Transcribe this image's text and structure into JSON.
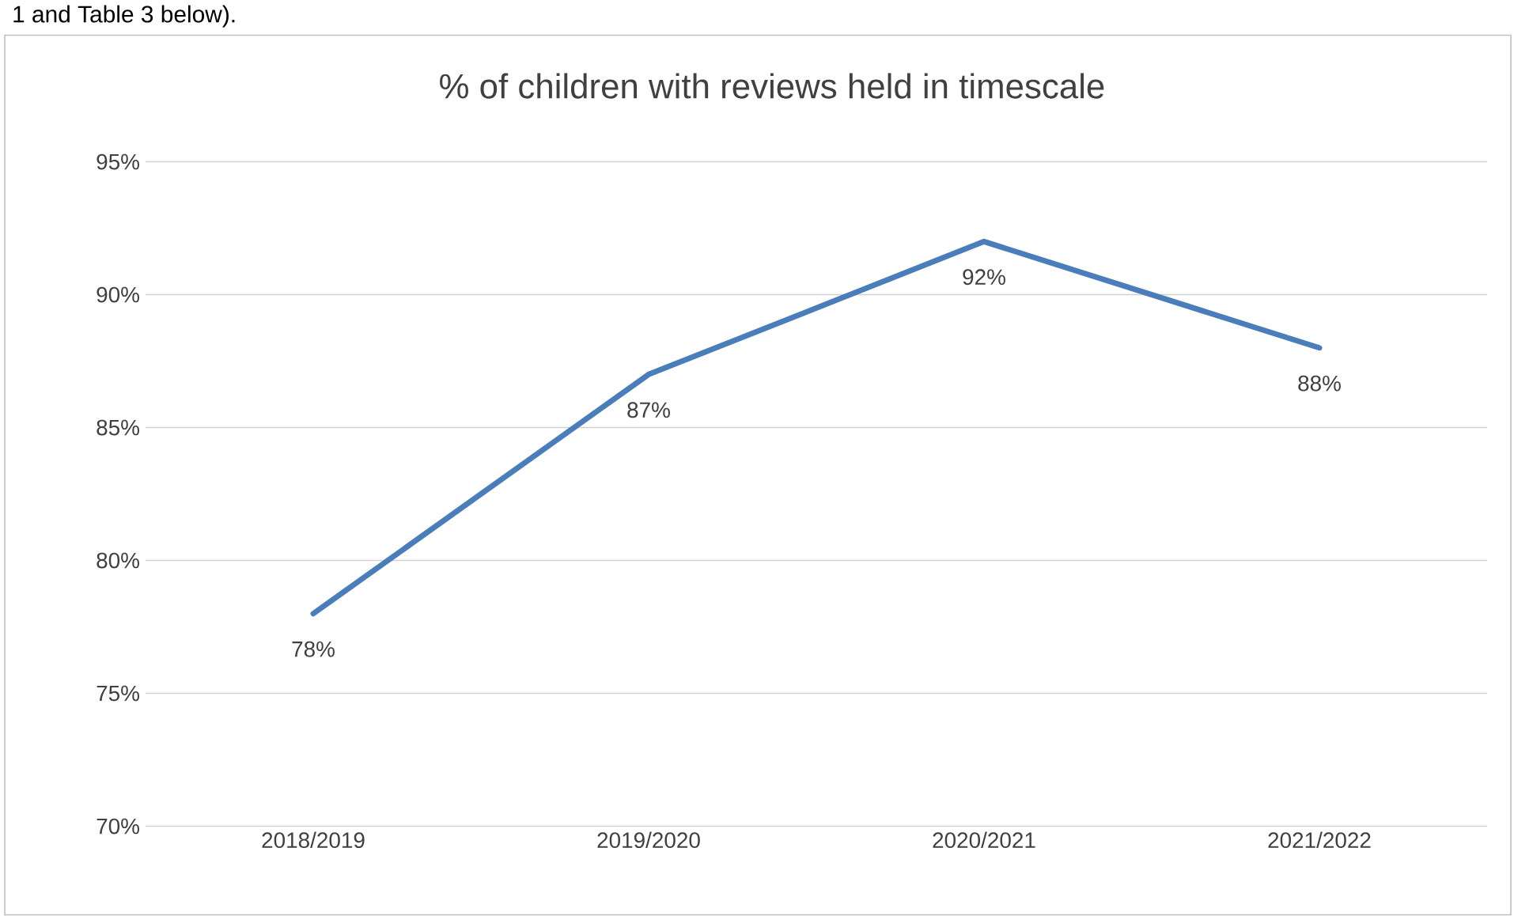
{
  "chart_data": {
    "type": "line",
    "title": "% of children with reviews held in timescale",
    "annotations": [
      "1 and Table 3 below)."
    ],
    "categories": [
      "2018/2019",
      "2019/2020",
      "2020/2021",
      "2021/2022"
    ],
    "series": [
      {
        "color": "#4a7ebb",
        "values": [
          78,
          87,
          92,
          88
        ],
        "value_labels": [
          "78%",
          "87%",
          "92%",
          "88%"
        ]
      }
    ],
    "ylim": [
      70,
      95
    ],
    "yticks": [
      {
        "value": 70,
        "label": "70%"
      },
      {
        "value": 75,
        "label": "75%"
      },
      {
        "value": 80,
        "label": "80%"
      },
      {
        "value": 85,
        "label": "85%"
      },
      {
        "value": 90,
        "label": "90%"
      },
      {
        "value": 95,
        "label": "95%"
      }
    ],
    "grid": "y",
    "legend": false,
    "marker": "none",
    "line_style": "solid"
  }
}
